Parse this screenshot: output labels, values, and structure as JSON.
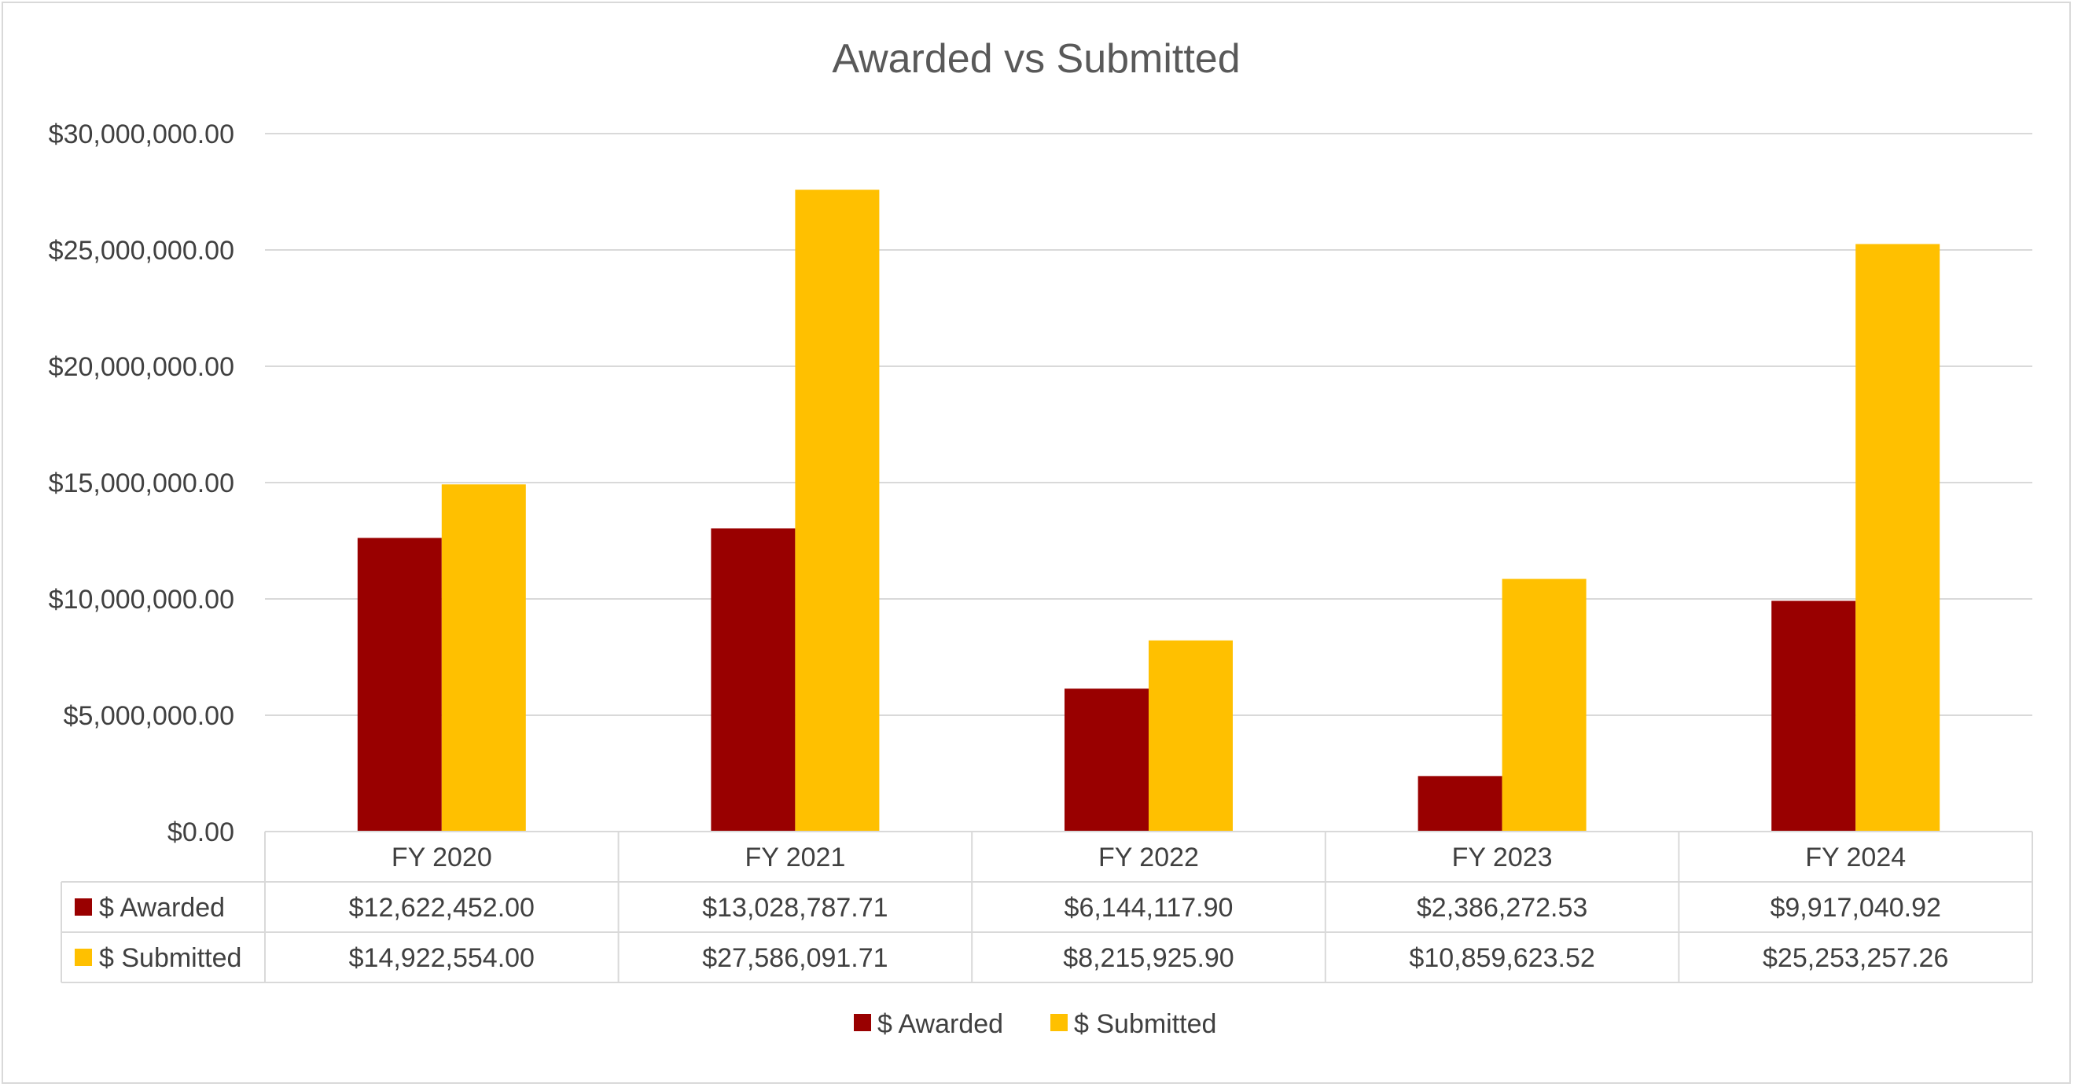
{
  "chart_data": {
    "type": "bar",
    "title": "Awarded vs Submitted",
    "xlabel": "",
    "ylabel": "",
    "ylim": [
      0,
      30000000
    ],
    "y_ticks": [
      "$0.00",
      "$5,000,000.00",
      "$10,000,000.00",
      "$15,000,000.00",
      "$20,000,000.00",
      "$25,000,000.00",
      "$30,000,000.00"
    ],
    "grid": true,
    "legend_position": "bottom",
    "categories": [
      "FY 2020",
      "FY 2021",
      "FY 2022",
      "FY 2023",
      "FY 2024"
    ],
    "series": [
      {
        "name": "$ Awarded",
        "color": "#990000",
        "values": [
          12622452.0,
          13028787.71,
          6144117.9,
          2386272.53,
          9917040.92
        ],
        "labels": [
          "$12,622,452.00",
          "$13,028,787.71",
          "$6,144,117.90",
          "$2,386,272.53",
          "$9,917,040.92"
        ]
      },
      {
        "name": "$ Submitted",
        "color": "#FFC000",
        "values": [
          14922554.0,
          27586091.71,
          8215925.9,
          10859623.52,
          25253257.26
        ],
        "labels": [
          "$14,922,554.00",
          "$27,586,091.71",
          "$8,215,925.90",
          "$10,859,623.52",
          "$25,253,257.26"
        ]
      }
    ],
    "data_table": true
  }
}
